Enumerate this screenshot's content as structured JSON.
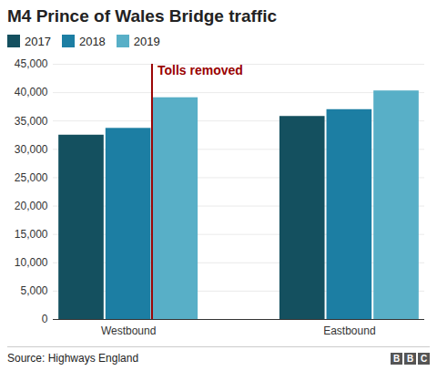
{
  "chart_data": {
    "type": "bar",
    "title": "M4 Prince of Wales Bridge traffic",
    "categories": [
      "Westbound",
      "Eastbound"
    ],
    "series": [
      {
        "name": "2017",
        "color": "#14505f",
        "values": [
          32500,
          35800
        ]
      },
      {
        "name": "2018",
        "color": "#1c7ea3",
        "values": [
          33700,
          37000
        ]
      },
      {
        "name": "2019",
        "color": "#58afc7",
        "values": [
          39100,
          40300
        ]
      }
    ],
    "ylim": [
      0,
      45000
    ],
    "yticks": [
      0,
      {
        "value": 5000,
        "label": "5,000"
      },
      {
        "value": 10000,
        "label": "10,000"
      },
      {
        "value": 15000,
        "label": "15,000"
      },
      {
        "value": 20000,
        "label": "20,000"
      },
      {
        "value": 25000,
        "label": "25,000"
      },
      {
        "value": 30000,
        "label": "30,000"
      },
      {
        "value": 35000,
        "label": "35,000"
      },
      {
        "value": 40000,
        "label": "40,000"
      },
      {
        "value": 45000,
        "label": "45,000"
      }
    ],
    "grid": true,
    "legend": "top",
    "annotations": [
      {
        "text": "Tolls removed",
        "category": "Westbound",
        "series": "2019",
        "color": "#990000"
      }
    ],
    "caption": "Source: Highways England",
    "credit": "BBC"
  }
}
